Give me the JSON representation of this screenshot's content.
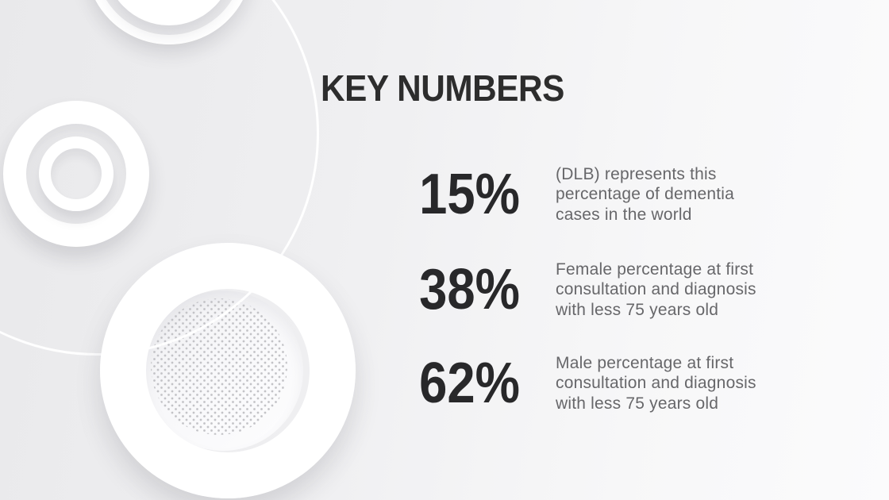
{
  "slide": {
    "title": "KEY NUMBERS",
    "stats": [
      {
        "value": "15%",
        "description": "(DLB) represents this\npercentage of dementia\ncases in the world"
      },
      {
        "value": "38%",
        "description": "Female percentage at first\nconsultation and diagnosis\nwith less 75 years old"
      },
      {
        "value": "62%",
        "description": "Male percentage at first\nconsultation and diagnosis\nwith less 75 years old"
      }
    ],
    "colors": {
      "background_left": "#e9e9eb",
      "background_right": "#fbfbfc",
      "title": "#2d2d2d",
      "number": "#28282a",
      "description": "#67676a",
      "circle": "#ffffff",
      "dots": "#c3c3c7"
    }
  }
}
